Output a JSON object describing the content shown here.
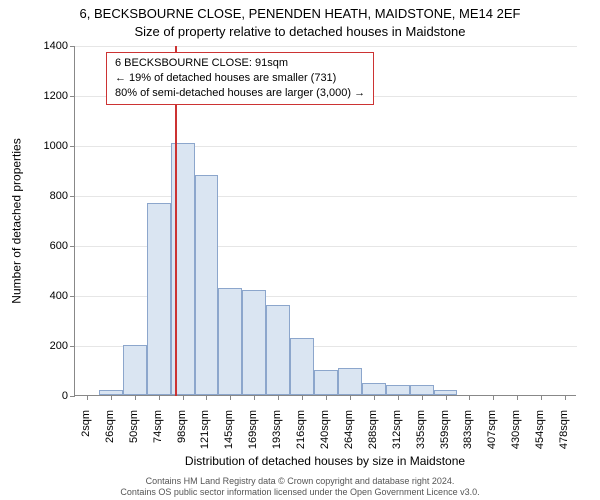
{
  "header": {
    "address": "6, BECKSBOURNE CLOSE, PENENDEN HEATH, MAIDSTONE, ME14 2EF",
    "subtitle": "Size of property relative to detached houses in Maidstone"
  },
  "info_box": {
    "line1": "6 BECKSBOURNE CLOSE: 91sqm",
    "line2": "← 19% of detached houses are smaller (731)",
    "line3": "80% of semi-detached houses are larger (3,000) →",
    "border_color": "#cc3333",
    "font_size": 11
  },
  "chart": {
    "type": "histogram",
    "y_label": "Number of detached properties",
    "x_label": "Distribution of detached houses by size in Maidstone",
    "ylim": [
      0,
      1400
    ],
    "ytick_step": 200,
    "y_ticks": [
      0,
      200,
      400,
      600,
      800,
      1000,
      1200,
      1400
    ],
    "x_categories": [
      "2sqm",
      "26sqm",
      "50sqm",
      "74sqm",
      "98sqm",
      "121sqm",
      "145sqm",
      "169sqm",
      "193sqm",
      "216sqm",
      "240sqm",
      "264sqm",
      "288sqm",
      "312sqm",
      "335sqm",
      "359sqm",
      "383sqm",
      "407sqm",
      "430sqm",
      "454sqm",
      "478sqm"
    ],
    "values": [
      0,
      20,
      200,
      770,
      1010,
      880,
      430,
      420,
      360,
      230,
      100,
      110,
      50,
      40,
      40,
      20,
      0,
      0,
      0,
      0,
      0
    ],
    "bar_fill": "#dae5f2",
    "bar_border": "#8ca6cc",
    "grid_color": "#e6e6e6",
    "axis_color": "#888888",
    "background_color": "#ffffff",
    "bar_width_ratio": 1.0,
    "marker": {
      "value_sqm": 91,
      "color": "#cc3333",
      "position_category_index": 3.7
    },
    "label_fontsize": 12,
    "tick_fontsize": 11
  },
  "footer": {
    "line1": "Contains HM Land Registry data © Crown copyright and database right 2024.",
    "line2": "Contains OS public sector information licensed under the Open Government Licence v3.0."
  }
}
